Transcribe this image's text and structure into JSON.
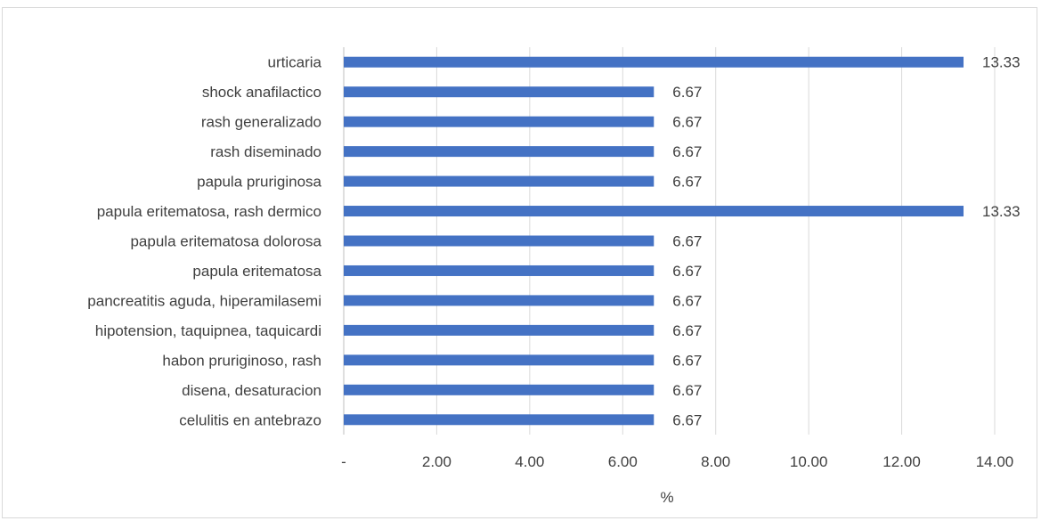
{
  "chart_data": {
    "type": "bar",
    "orientation": "horizontal",
    "categories": [
      "urticaria",
      "shock anafilactico",
      "rash generalizado",
      "rash diseminado",
      "papula pruriginosa",
      "papula eritematosa, rash dermico",
      "papula eritematosa dolorosa",
      "papula eritematosa",
      "pancreatitis aguda, hiperamilasemi",
      "hipotension, taquipnea, taquicardi",
      "habon pruriginoso, rash",
      "disena, desaturacion",
      "celulitis en antebrazo"
    ],
    "values": [
      13.33,
      6.67,
      6.67,
      6.67,
      6.67,
      13.33,
      6.67,
      6.67,
      6.67,
      6.67,
      6.67,
      6.67,
      6.67
    ],
    "data_labels": [
      "13.33",
      "6.67",
      "6.67",
      "6.67",
      "6.67",
      "13.33",
      "6.67",
      "6.67",
      "6.67",
      "6.67",
      "6.67",
      "6.67",
      "6.67"
    ],
    "title": "",
    "xlabel": "%",
    "ylabel": "",
    "xlim": [
      0,
      14
    ],
    "x_ticks": [
      0,
      2,
      4,
      6,
      8,
      10,
      12,
      14
    ],
    "x_tick_labels": [
      "-",
      "2.00",
      "4.00",
      "6.00",
      "8.00",
      "10.00",
      "12.00",
      "14.00"
    ],
    "grid": "vertical",
    "legend": "none",
    "bar_color": "#4472c4",
    "grid_color": "#d9d9d9"
  }
}
